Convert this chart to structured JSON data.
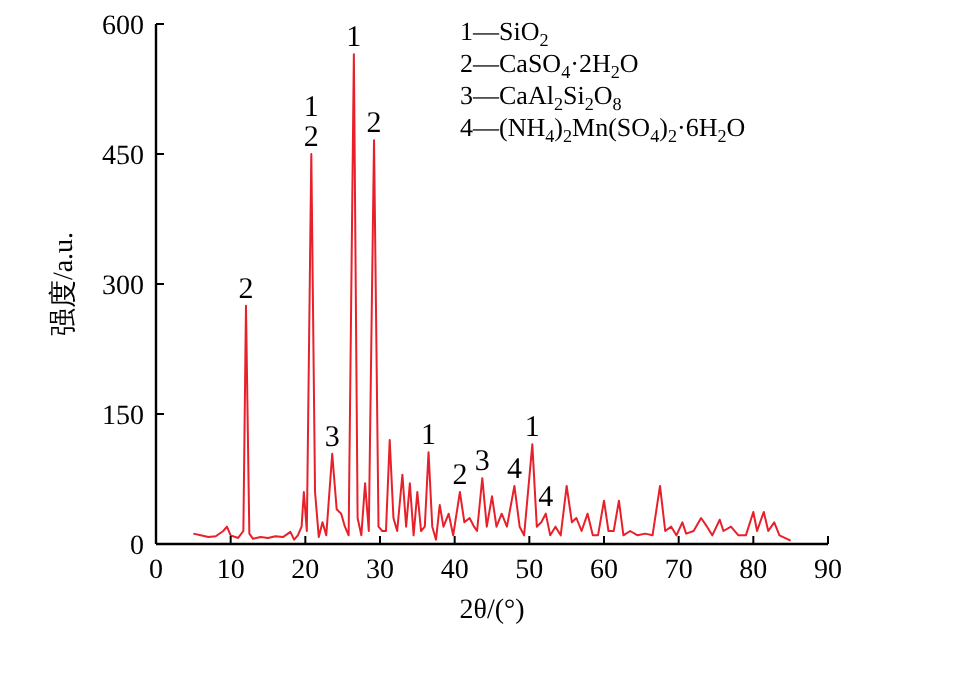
{
  "chart_data": {
    "type": "line",
    "xlabel": "2θ/(°)",
    "ylabel": "强度/a.u.",
    "xlim": [
      0,
      90
    ],
    "xticks": [
      0,
      10,
      20,
      30,
      40,
      50,
      60,
      70,
      80,
      90
    ],
    "ylim": [
      0,
      600
    ],
    "yticks": [
      0,
      150,
      300,
      450,
      600
    ],
    "grid": false,
    "marker": "none",
    "line_style": "solid",
    "series": [
      {
        "color": "#e8202a",
        "x": [
          5,
          6,
          7,
          8,
          9,
          9.5,
          10,
          11,
          11.7,
          12.05,
          12.5,
          13,
          14,
          15,
          16,
          17,
          18,
          18.5,
          19,
          19.5,
          19.8,
          20.2,
          20.8,
          21.3,
          21.8,
          22.3,
          22.8,
          23.6,
          24.2,
          24.8,
          25.3,
          25.8,
          26.5,
          27,
          27.5,
          28,
          28.5,
          29.2,
          29.8,
          30.3,
          30.8,
          31.3,
          31.8,
          32.3,
          33,
          33.5,
          34,
          34.5,
          35,
          35.5,
          36,
          36.5,
          37,
          37.5,
          38,
          38.5,
          39.2,
          39.8,
          40.7,
          41.3,
          42,
          42.6,
          43,
          43.7,
          44.3,
          45,
          45.6,
          46.3,
          47,
          48,
          48.7,
          49.3,
          50.4,
          51,
          51.6,
          52.2,
          52.8,
          53.5,
          54.2,
          55,
          55.7,
          56.3,
          57,
          57.8,
          58.5,
          59.2,
          60,
          60.6,
          61.3,
          62,
          62.6,
          63.5,
          64.5,
          65.5,
          66.5,
          67.5,
          68.2,
          69,
          69.7,
          70.5,
          71,
          72,
          73,
          73.8,
          74.5,
          75.5,
          76,
          77,
          78,
          79,
          80,
          80.5,
          81.4,
          82,
          82.8,
          83.5,
          85
        ],
        "values": [
          12,
          10,
          8,
          9,
          15,
          20,
          10,
          7,
          15,
          275,
          12,
          6,
          8,
          7,
          9,
          8,
          14,
          5,
          10,
          20,
          60,
          15,
          450,
          60,
          8,
          25,
          10,
          104,
          40,
          35,
          20,
          10,
          565,
          30,
          10,
          70,
          15,
          466,
          20,
          15,
          15,
          120,
          30,
          15,
          80,
          20,
          70,
          10,
          60,
          15,
          20,
          106,
          20,
          5,
          45,
          20,
          35,
          10,
          60,
          25,
          30,
          20,
          15,
          76,
          20,
          55,
          20,
          35,
          20,
          67,
          20,
          10,
          115,
          20,
          25,
          35,
          10,
          20,
          10,
          67,
          25,
          30,
          15,
          35,
          10,
          10,
          50,
          15,
          15,
          50,
          10,
          15,
          10,
          12,
          10,
          67,
          15,
          20,
          10,
          25,
          12,
          15,
          30,
          20,
          10,
          28,
          15,
          20,
          10,
          10,
          37,
          15,
          37,
          15,
          25,
          10,
          4
        ]
      }
    ],
    "annotations": [
      {
        "text": "2",
        "x": 12.05,
        "y": 275
      },
      {
        "text": "2",
        "x": 20.8,
        "y": 450
      },
      {
        "text": "1",
        "x": 20.8,
        "y": 450
      },
      {
        "text": "3",
        "x": 23.6,
        "y": 104
      },
      {
        "text": "1",
        "x": 26.5,
        "y": 565
      },
      {
        "text": "2",
        "x": 29.2,
        "y": 466
      },
      {
        "text": "1",
        "x": 36.5,
        "y": 106
      },
      {
        "text": "2",
        "x": 40.7,
        "y": 60
      },
      {
        "text": "3",
        "x": 43.7,
        "y": 76
      },
      {
        "text": "4",
        "x": 48,
        "y": 67
      },
      {
        "text": "1",
        "x": 50.4,
        "y": 115
      },
      {
        "text": "4",
        "x": 52.2,
        "y": 35
      },
      "1—SiO$_{2}$",
      "2—CaSO$_{4}$·2H$_{2}$O",
      "3—CaAl$_{2}$Si$_{2}$O$_{8}$",
      "4—(NH$_{4}$)$_{2}$Mn(SO$_{4}$)$_{2}$·6H$_{2}$O"
    ]
  }
}
